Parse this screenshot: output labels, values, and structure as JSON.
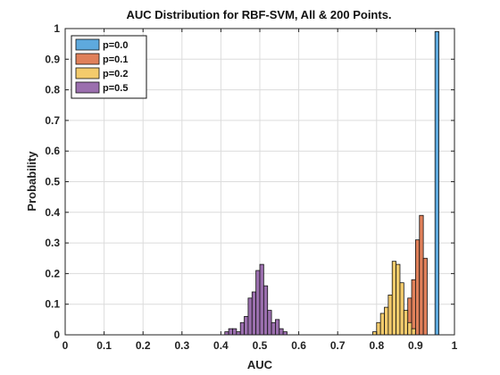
{
  "chart_data": {
    "type": "bar",
    "title": "AUC Distribution for RBF-SVM, All & 200 Points.",
    "xlabel": "AUC",
    "ylabel": "Probability",
    "xlim": [
      0,
      1
    ],
    "ylim": [
      0,
      1
    ],
    "xticks": [
      "0",
      "0.1",
      "0.2",
      "0.3",
      "0.4",
      "0.5",
      "0.6",
      "0.7",
      "0.8",
      "0.9",
      "1"
    ],
    "yticks": [
      "0",
      "0.1",
      "0.2",
      "0.3",
      "0.4",
      "0.5",
      "0.6",
      "0.7",
      "0.8",
      "0.9",
      "1"
    ],
    "grid": true,
    "legend_position": "top-left",
    "bin_width": 0.01,
    "series": [
      {
        "name": "p=0.0",
        "color": "#5ea9dd",
        "bins": [
          [
            0.955,
            0.99
          ]
        ]
      },
      {
        "name": "p=0.1",
        "color": "#e0805a",
        "bins": [
          [
            0.855,
            0.01
          ],
          [
            0.865,
            0.04
          ],
          [
            0.875,
            0.07
          ],
          [
            0.885,
            0.12
          ],
          [
            0.895,
            0.18
          ],
          [
            0.905,
            0.31
          ],
          [
            0.915,
            0.39
          ],
          [
            0.925,
            0.25
          ]
        ]
      },
      {
        "name": "p=0.2",
        "color": "#f3cb6c",
        "bins": [
          [
            0.795,
            0.01
          ],
          [
            0.805,
            0.04
          ],
          [
            0.815,
            0.07
          ],
          [
            0.825,
            0.09
          ],
          [
            0.835,
            0.13
          ],
          [
            0.845,
            0.24
          ],
          [
            0.855,
            0.23
          ],
          [
            0.865,
            0.17
          ],
          [
            0.875,
            0.08
          ],
          [
            0.885,
            0.04
          ],
          [
            0.895,
            0.02
          ]
        ]
      },
      {
        "name": "p=0.5",
        "color": "#9b6fae",
        "bins": [
          [
            0.415,
            0.01
          ],
          [
            0.425,
            0.02
          ],
          [
            0.435,
            0.02
          ],
          [
            0.445,
            0.01
          ],
          [
            0.455,
            0.04
          ],
          [
            0.465,
            0.06
          ],
          [
            0.475,
            0.12
          ],
          [
            0.485,
            0.14
          ],
          [
            0.495,
            0.21
          ],
          [
            0.505,
            0.23
          ],
          [
            0.515,
            0.16
          ],
          [
            0.525,
            0.08
          ],
          [
            0.535,
            0.04
          ],
          [
            0.545,
            0.05
          ],
          [
            0.555,
            0.02
          ],
          [
            0.565,
            0.01
          ]
        ]
      }
    ]
  }
}
